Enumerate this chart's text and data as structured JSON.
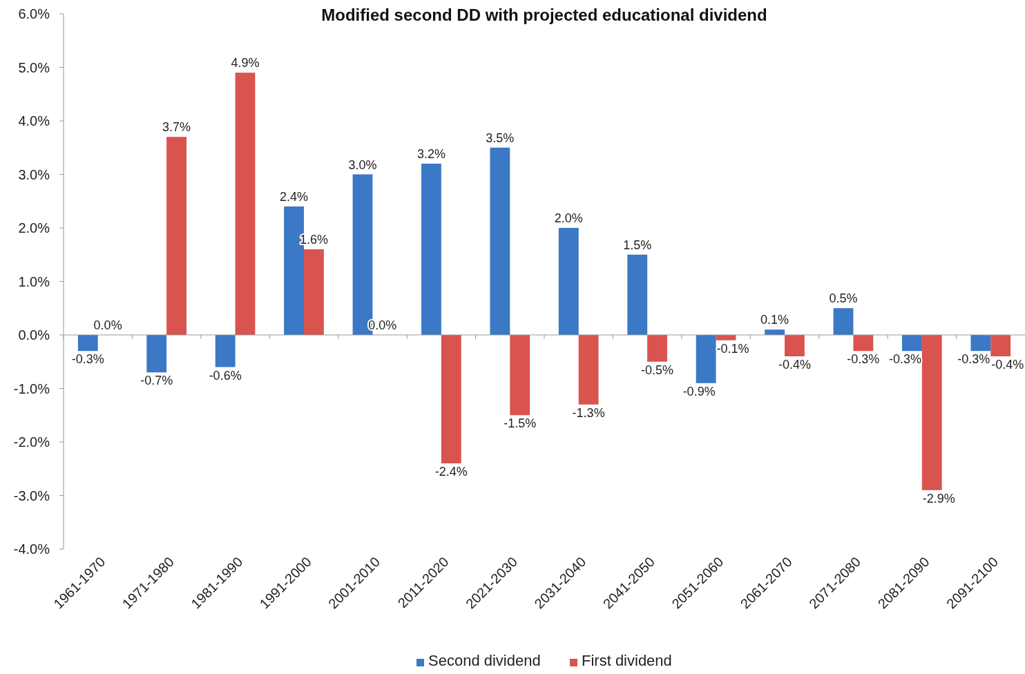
{
  "chart_data": {
    "type": "bar",
    "title": "Modified second DD with projected educational dividend",
    "categories": [
      "1961-1970",
      "1971-1980",
      "1981-1990",
      "1991-2000",
      "2001-2010",
      "2011-2020",
      "2021-2030",
      "2031-2040",
      "2041-2050",
      "2051-2060",
      "2061-2070",
      "2071-2080",
      "2081-2090",
      "2091-2100"
    ],
    "series": [
      {
        "name": "Second dividend",
        "color": "#3b78c6",
        "values": [
          -0.3,
          -0.7,
          -0.6,
          2.4,
          3.0,
          3.2,
          3.5,
          2.0,
          1.5,
          -0.9,
          0.1,
          0.5,
          -0.3,
          -0.3
        ],
        "value_labels": [
          "-0.3%",
          "-0.7%",
          "-0.6%",
          "2.4%",
          "3.0%",
          "3.2%",
          "3.5%",
          "2.0%",
          "1.5%",
          "-0.9%",
          "0.1%",
          "0.5%",
          "-0.3%",
          "-0.3%"
        ]
      },
      {
        "name": "First dividend",
        "color": "#d9534f",
        "values": [
          0.0,
          3.7,
          4.9,
          1.6,
          0.0,
          -2.4,
          -1.5,
          -1.3,
          -0.5,
          -0.1,
          -0.4,
          -0.3,
          -2.9,
          -0.4
        ],
        "value_labels": [
          "0.0%",
          "3.7%",
          "4.9%",
          "1.6%",
          "0.0%",
          "-2.4%",
          "-1.5%",
          "-1.3%",
          "-0.5%",
          "-0.1%",
          "-0.4%",
          "-0.3%",
          "-2.9%",
          "-0.4%"
        ]
      }
    ],
    "ylim": [
      -4,
      6
    ],
    "yticks": [
      {
        "value": -4,
        "label": "-4.0%"
      },
      {
        "value": -3,
        "label": "-3.0%"
      },
      {
        "value": -2,
        "label": "-2.0%"
      },
      {
        "value": -1,
        "label": "-1.0%"
      },
      {
        "value": 0,
        "label": "0.0%"
      },
      {
        "value": 1,
        "label": "1.0%"
      },
      {
        "value": 2,
        "label": "2.0%"
      },
      {
        "value": 3,
        "label": "3.0%"
      },
      {
        "value": 4,
        "label": "4.0%"
      },
      {
        "value": 5,
        "label": "5.0%"
      },
      {
        "value": 6,
        "label": "6.0%"
      }
    ],
    "legend": "bottom"
  }
}
